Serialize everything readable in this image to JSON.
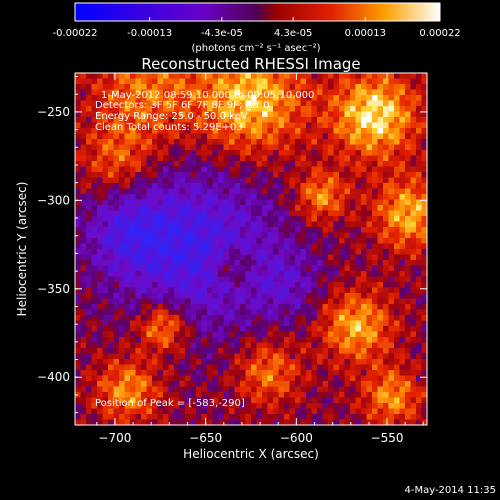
{
  "colorbar": {
    "tick_labels": [
      "-0.00022",
      "-0.00013",
      "-4.3e-05",
      "4.3e-05",
      "0.00013",
      "0.00022"
    ],
    "unit_label": "(photons cm⁻² s⁻¹ asec⁻²)",
    "range": [
      -0.00022,
      0.00022
    ]
  },
  "chart_data": {
    "type": "heatmap",
    "title": "Reconstructed RHESSI Image",
    "xlabel": "Heliocentric X (arcsec)",
    "ylabel": "Heliocentric Y (arcsec)",
    "xlim": [
      -722,
      -528
    ],
    "ylim": [
      -427,
      -228
    ],
    "xticks": [
      -700,
      -650,
      -600,
      -550
    ],
    "yticks": [
      -250,
      -300,
      -350,
      -400
    ],
    "xtick_labels": [
      "−700",
      "−650",
      "−600",
      "−550"
    ],
    "ytick_labels": [
      "−250",
      "−300",
      "−350",
      "−400"
    ],
    "colormap": "blue-purple-red-yellow-white",
    "annotations": [
      "1-May-2012 08:59:10.000 to 09:05:10.000",
      "Detectors: 3F 5F 6F 7F 8F 9F; Att 0",
      "Energy Range: 25.0 - 50.0 keV",
      "Clean     Total counts: 5.29E+03"
    ],
    "peak_label": "Position of Peak = [-583,-290]",
    "peak": [
      -583,
      -290
    ]
  },
  "footer": {
    "timestamp": "4-May-2014 11:35"
  }
}
